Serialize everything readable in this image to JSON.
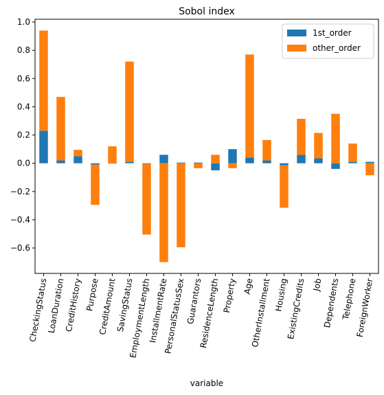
{
  "chart_data": {
    "type": "bar",
    "stacked": true,
    "title": "Sobol index",
    "xlabel": "variable",
    "ylabel": "",
    "ylim": [
      -0.78,
      1.02
    ],
    "yticks": [
      -0.6,
      -0.4,
      -0.2,
      0.0,
      0.2,
      0.4,
      0.6,
      0.8,
      1.0
    ],
    "ytick_labels": [
      "−0.6",
      "−0.4",
      "−0.2",
      "0.0",
      "0.2",
      "0.4",
      "0.6",
      "0.8",
      "1.0"
    ],
    "grid": false,
    "legend_position": "top-right",
    "categories": [
      "CheckingStatus",
      "LoanDuration",
      "CreditHistory",
      "Purpose",
      "CreditAmount",
      "SavingStatus",
      "EmploymentLength",
      "InstallmentRate",
      "PersonalStatusSex",
      "Guarantors",
      "ResidenceLength",
      "Property",
      "Age",
      "OtherInstallment",
      "Housing",
      "ExistingCredits",
      "Job",
      "Dependents",
      "Telephone",
      "ForeignWorker"
    ],
    "series": [
      {
        "name": "1st_order",
        "color": "#1f77b4",
        "values": [
          0.23,
          0.02,
          0.05,
          -0.01,
          0.0,
          0.01,
          -0.005,
          0.06,
          0.005,
          0.005,
          -0.05,
          0.1,
          0.04,
          0.02,
          -0.015,
          0.06,
          0.035,
          -0.04,
          0.01,
          0.01
        ]
      },
      {
        "name": "other_order",
        "color": "#ff7f0e",
        "values": [
          0.71,
          0.45,
          0.045,
          -0.285,
          0.12,
          0.71,
          -0.5,
          -0.7,
          -0.595,
          -0.035,
          0.06,
          -0.035,
          0.73,
          0.145,
          -0.3,
          0.255,
          0.18,
          0.35,
          0.13,
          -0.085
        ]
      }
    ]
  }
}
